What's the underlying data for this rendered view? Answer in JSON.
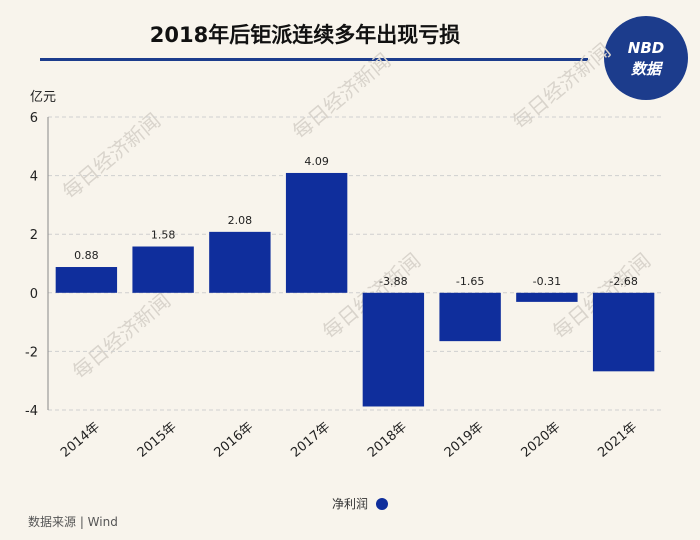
{
  "logo": {
    "line1": "NBD",
    "line2": "数据"
  },
  "watermark": "每日经济新闻",
  "footer": {
    "source": "数据来源 | Wind"
  },
  "colors": {
    "bar": "#0f2e9c",
    "background": "#f8f4ec",
    "logo_bg": "#1c3c8c",
    "grid": "#cfcfcf"
  },
  "chart_data": {
    "type": "bar",
    "title": "2018年后钜派连续多年出现亏损",
    "ylabel": "亿元",
    "xlabel": "",
    "categories": [
      "2014年",
      "2015年",
      "2016年",
      "2017年",
      "2018年",
      "2019年",
      "2020年",
      "2021年"
    ],
    "series": [
      {
        "name": "净利润",
        "values": [
          0.88,
          1.58,
          2.08,
          4.09,
          -3.88,
          -1.65,
          -0.31,
          -2.68
        ]
      }
    ],
    "data_labels": [
      "0.88",
      "1.58",
      "2.08",
      "4.09",
      "-3.88",
      "-1.65",
      "-0.31",
      "-2.68"
    ],
    "ylim": [
      -4,
      6
    ],
    "yticks": [
      6,
      4,
      2,
      0,
      -2,
      -4
    ],
    "ytick_labels": [
      "6",
      "4",
      "2",
      "0",
      "-2",
      "-4"
    ],
    "grid": true,
    "legend": "bottom-center"
  }
}
